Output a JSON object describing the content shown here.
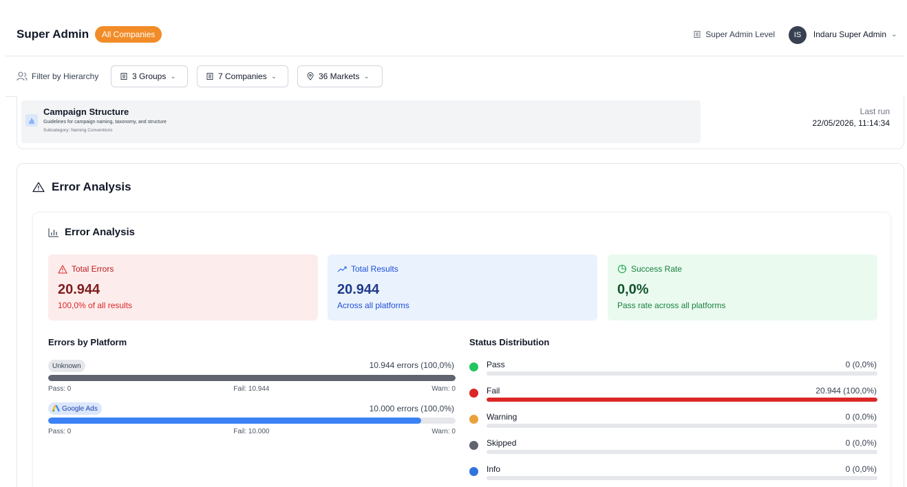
{
  "header": {
    "title": "Super Admin",
    "badge": "All Companies",
    "level": "Super Admin Level",
    "avatar_initials": "IS",
    "user_name": "Indaru Super Admin"
  },
  "filters": {
    "label": "Filter by Hierarchy",
    "groups": "3 Groups",
    "companies": "7 Companies",
    "markets": "36 Markets"
  },
  "campaign": {
    "title": "Campaign Structure",
    "description": "Guidelines for campaign naming, taxonomy, and structure",
    "subcategory": "Subcategory: Naming Conventions",
    "last_run_label": "Last run",
    "last_run_value": "22/05/2026, 11:14:34"
  },
  "error_section": {
    "title": "Error Analysis",
    "inner_title": "Error Analysis",
    "stats": {
      "total_errors": {
        "label": "Total Errors",
        "value": "20.944",
        "sub": "100,0% of all results"
      },
      "total_results": {
        "label": "Total Results",
        "value": "20.944",
        "sub": "Across all platforms"
      },
      "success_rate": {
        "label": "Success Rate",
        "value": "0,0%",
        "sub": "Pass rate across all platforms"
      }
    },
    "platforms_title": "Errors by Platform",
    "platforms": [
      {
        "name": "Unknown",
        "count": "10.944 errors (100,0%)",
        "fill": 1.0,
        "color": "#5f6470",
        "pass": "Pass: 0",
        "fail": "Fail: 10.944",
        "warn": "Warn: 0"
      },
      {
        "name": "Google Ads",
        "count": "10.000 errors (100,0%)",
        "fill": 0.915,
        "color": "#3b82f6",
        "pass": "Pass: 0",
        "fail": "Fail: 10.000",
        "warn": "Warn: 0"
      }
    ],
    "status_title": "Status Distribution",
    "statuses": [
      {
        "name": "Pass",
        "value": "0 (0,0%)",
        "color": "#22c55e",
        "fill": 0
      },
      {
        "name": "Fail",
        "value": "20.944 (100,0%)",
        "color": "#dc2626",
        "fill": 1.0
      },
      {
        "name": "Warning",
        "value": "0 (0,0%)",
        "color": "#e9a23b",
        "fill": 0
      },
      {
        "name": "Skipped",
        "value": "0 (0,0%)",
        "color": "#5f6470",
        "fill": 0
      },
      {
        "name": "Info",
        "value": "0 (0,0%)",
        "color": "#2f74e0",
        "fill": 0
      }
    ]
  },
  "colors": {
    "brand_badge": "#f28c28",
    "errors_bg": "#fdecec",
    "results_bg": "#eaf2fd",
    "success_bg": "#eafaef"
  }
}
